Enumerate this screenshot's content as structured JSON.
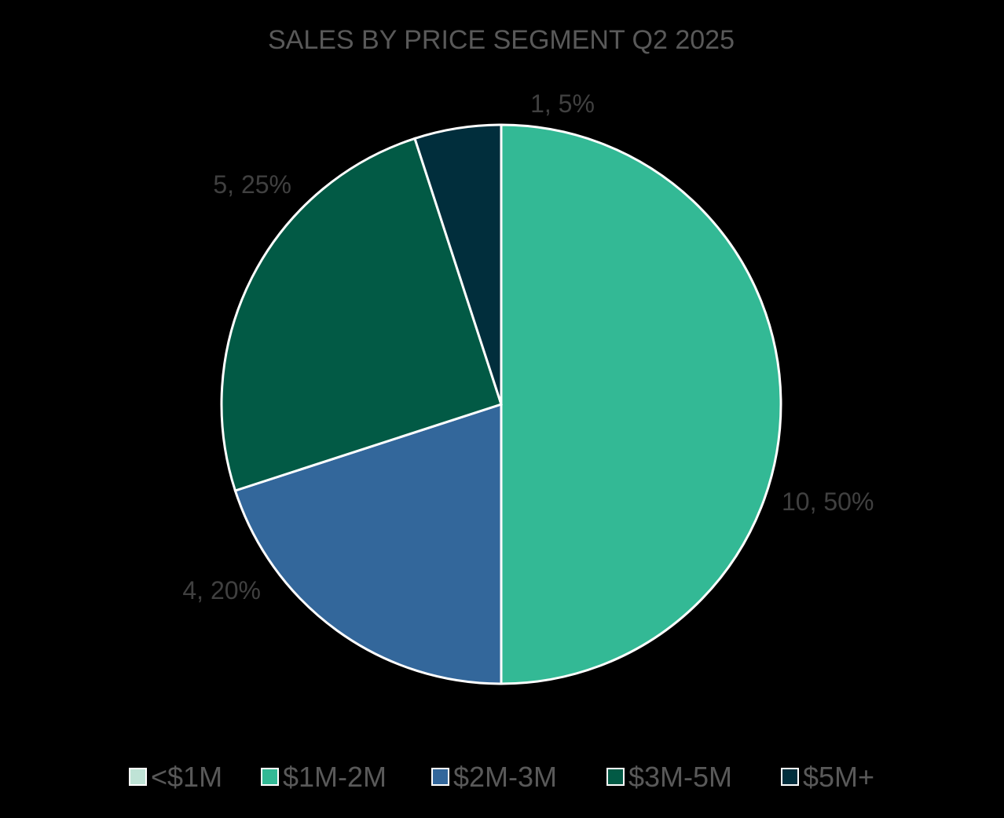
{
  "chart_data": {
    "type": "pie",
    "title": "SALES BY PRICE SEGMENT Q2 2025",
    "categories": [
      "<$1M",
      "$1M-2M",
      "$2M-3M",
      "$3M-5M",
      "$5M+"
    ],
    "values": [
      0,
      10,
      4,
      5,
      1
    ],
    "percentages": [
      0,
      50,
      20,
      25,
      5
    ],
    "data_labels": [
      "",
      "10, 50%",
      "4, 20%",
      "5, 25%",
      "1, 5%"
    ],
    "colors": [
      "#bfe3d6",
      "#33b995",
      "#33679b",
      "#025a45",
      "#012e3c"
    ],
    "legend_position": "bottom"
  }
}
